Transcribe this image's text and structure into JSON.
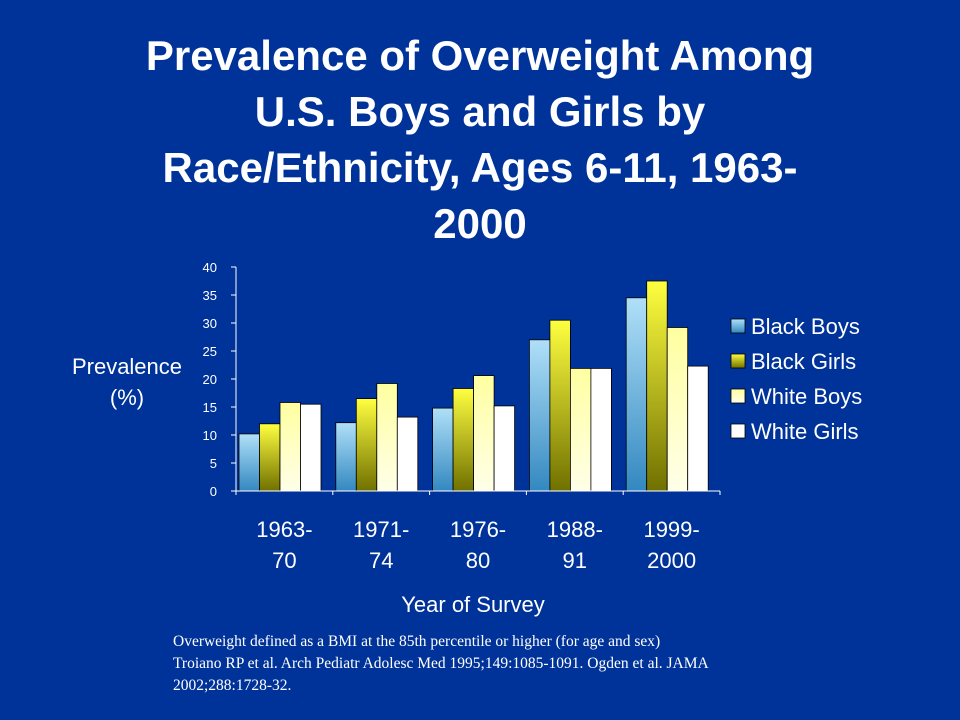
{
  "slide": {
    "title_lines": [
      "Prevalence of Overweight Among",
      "U.S. Boys and Girls by",
      "Race/Ethnicity, Ages 6-11, 1963-",
      "2000"
    ],
    "footnote_lines": [
      "Overweight defined as a BMI at the 85th percentile or higher (for age and sex)",
      "Troiano RP et al. Arch Pediatr Adolesc Med 1995;149:1085-1091. Ogden et al. JAMA",
      "2002;288:1728-32."
    ]
  },
  "chart_data": {
    "type": "bar",
    "ylabel_lines": [
      "Prevalence",
      "(%)"
    ],
    "xlabel": "Year of Survey",
    "categories": [
      [
        "1963-",
        "70"
      ],
      [
        "1971-",
        "74"
      ],
      [
        "1976-",
        "80"
      ],
      [
        "1988-",
        "91"
      ],
      [
        "1999-",
        "2000"
      ]
    ],
    "ylim": [
      0,
      40
    ],
    "yticks": [
      0,
      5,
      10,
      15,
      20,
      25,
      30,
      35,
      40
    ],
    "grid": false,
    "legend_position": "right",
    "series": [
      {
        "name": "Black Boys",
        "values": [
          10.2,
          12.2,
          14.8,
          27.0,
          34.5
        ],
        "color_top": "#b0e0f8",
        "color_bottom": "#3388c0"
      },
      {
        "name": "Black Girls",
        "values": [
          12.0,
          16.5,
          18.3,
          30.5,
          37.5
        ],
        "color_top": "#ffff40",
        "color_bottom": "#707000"
      },
      {
        "name": "White Boys",
        "values": [
          15.8,
          19.2,
          20.6,
          21.9,
          29.2
        ],
        "color_top": "#ffffa0",
        "color_bottom": "#ffffe8"
      },
      {
        "name": "White Girls",
        "values": [
          15.5,
          13.2,
          15.2,
          21.9,
          22.3
        ],
        "color_top": "#ffffff",
        "color_bottom": "#ffffff"
      }
    ]
  }
}
